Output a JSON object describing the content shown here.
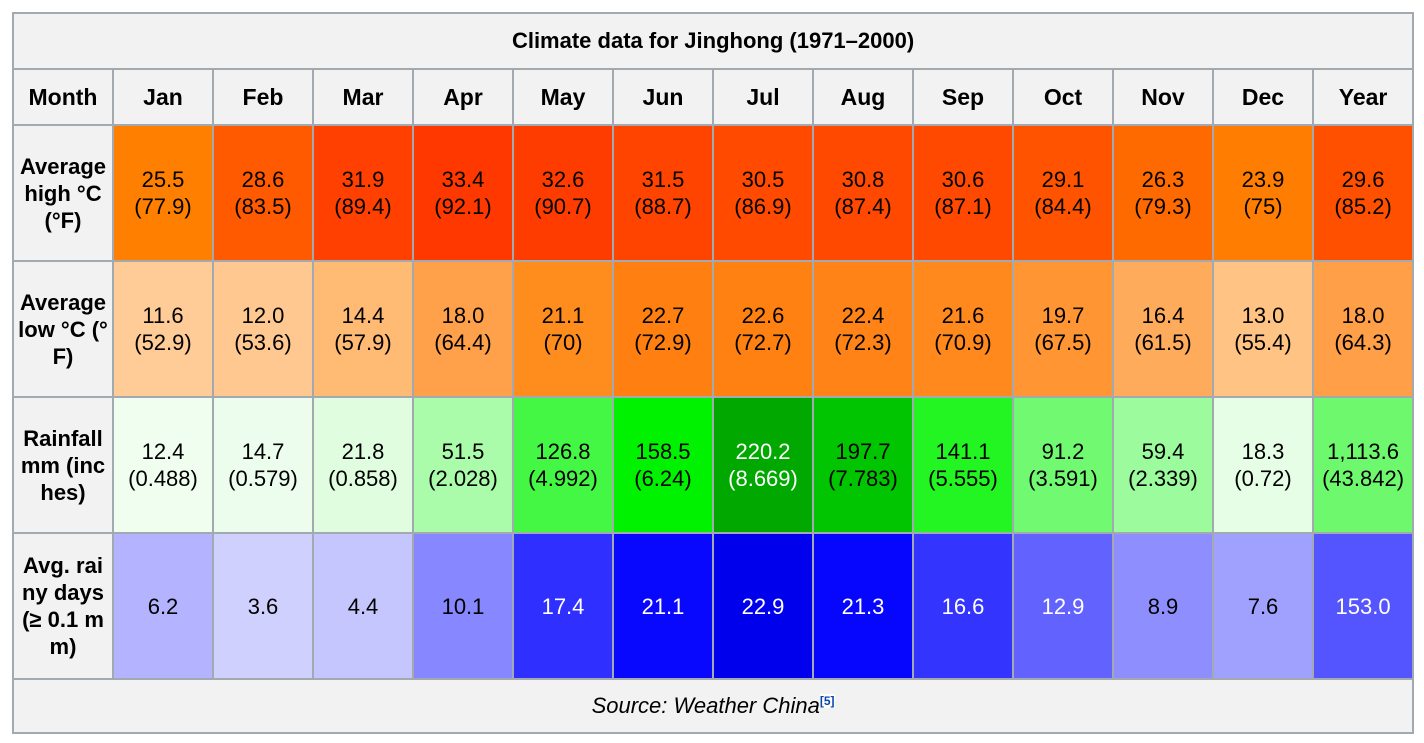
{
  "caption": "Climate data for Jinghong (1971–2000)",
  "header": {
    "month_label": "Month",
    "months": [
      "Jan",
      "Feb",
      "Mar",
      "Apr",
      "May",
      "Jun",
      "Jul",
      "Aug",
      "Sep",
      "Oct",
      "Nov",
      "Dec",
      "Year"
    ]
  },
  "rows": [
    {
      "label": "Average high °C (°F)",
      "cells": [
        {
          "v": "25.5",
          "s": "(77.9)",
          "bg": "#ff7f00",
          "fg": "#000000"
        },
        {
          "v": "28.6",
          "s": "(83.5)",
          "bg": "#ff5a00",
          "fg": "#000000"
        },
        {
          "v": "31.9",
          "s": "(89.4)",
          "bg": "#ff4000",
          "fg": "#000000"
        },
        {
          "v": "33.4",
          "s": "(92.1)",
          "bg": "#ff3800",
          "fg": "#000000"
        },
        {
          "v": "32.6",
          "s": "(90.7)",
          "bg": "#ff3c00",
          "fg": "#000000"
        },
        {
          "v": "31.5",
          "s": "(88.7)",
          "bg": "#ff4400",
          "fg": "#000000"
        },
        {
          "v": "30.5",
          "s": "(86.9)",
          "bg": "#ff4a00",
          "fg": "#000000"
        },
        {
          "v": "30.8",
          "s": "(87.4)",
          "bg": "#ff4800",
          "fg": "#000000"
        },
        {
          "v": "30.6",
          "s": "(87.1)",
          "bg": "#ff4900",
          "fg": "#000000"
        },
        {
          "v": "29.1",
          "s": "(84.4)",
          "bg": "#ff5300",
          "fg": "#000000"
        },
        {
          "v": "26.3",
          "s": "(79.3)",
          "bg": "#ff6a00",
          "fg": "#000000"
        },
        {
          "v": "23.9",
          "s": "(75)",
          "bg": "#ff7d00",
          "fg": "#000000"
        },
        {
          "v": "29.6",
          "s": "(85.2)",
          "bg": "#ff5000",
          "fg": "#000000"
        }
      ]
    },
    {
      "label": "Average low °C (°F)",
      "cells": [
        {
          "v": "11.6",
          "s": "(52.9)",
          "bg": "#ffcb96",
          "fg": "#000000"
        },
        {
          "v": "12.0",
          "s": "(53.6)",
          "bg": "#ffc890",
          "fg": "#000000"
        },
        {
          "v": "14.4",
          "s": "(57.9)",
          "bg": "#ffba74",
          "fg": "#000000"
        },
        {
          "v": "18.0",
          "s": "(64.4)",
          "bg": "#ffa04a",
          "fg": "#000000"
        },
        {
          "v": "21.1",
          "s": "(70)",
          "bg": "#ff8d1e",
          "fg": "#000000"
        },
        {
          "v": "22.7",
          "s": "(72.9)",
          "bg": "#ff8010",
          "fg": "#000000"
        },
        {
          "v": "22.6",
          "s": "(72.7)",
          "bg": "#ff8112",
          "fg": "#000000"
        },
        {
          "v": "22.4",
          "s": "(72.3)",
          "bg": "#ff8316",
          "fg": "#000000"
        },
        {
          "v": "21.6",
          "s": "(70.9)",
          "bg": "#ff891c",
          "fg": "#000000"
        },
        {
          "v": "19.7",
          "s": "(67.5)",
          "bg": "#ff9533",
          "fg": "#000000"
        },
        {
          "v": "16.4",
          "s": "(61.5)",
          "bg": "#ffab5c",
          "fg": "#000000"
        },
        {
          "v": "13.0",
          "s": "(55.4)",
          "bg": "#ffc383",
          "fg": "#000000"
        },
        {
          "v": "18.0",
          "s": "(64.3)",
          "bg": "#ff9f47",
          "fg": "#000000"
        }
      ]
    },
    {
      "label": "Rainfall mm (inches)",
      "cells": [
        {
          "v": "12.4",
          "s": "(0.488)",
          "bg": "#effeef",
          "fg": "#000000"
        },
        {
          "v": "14.7",
          "s": "(0.579)",
          "bg": "#edfded",
          "fg": "#000000"
        },
        {
          "v": "21.8",
          "s": "(0.858)",
          "bg": "#e0fde0",
          "fg": "#000000"
        },
        {
          "v": "51.5",
          "s": "(2.028)",
          "bg": "#aafbaa",
          "fg": "#000000"
        },
        {
          "v": "126.8",
          "s": "(4.992)",
          "bg": "#44f744",
          "fg": "#000000"
        },
        {
          "v": "158.5",
          "s": "(6.24)",
          "bg": "#00f200",
          "fg": "#000000"
        },
        {
          "v": "220.2",
          "s": "(8.669)",
          "bg": "#00a800",
          "fg": "#ffffff"
        },
        {
          "v": "197.7",
          "s": "(7.783)",
          "bg": "#00c500",
          "fg": "#000000"
        },
        {
          "v": "141.1",
          "s": "(5.555)",
          "bg": "#22f522",
          "fg": "#000000"
        },
        {
          "v": "91.2",
          "s": "(3.591)",
          "bg": "#72f972",
          "fg": "#000000"
        },
        {
          "v": "59.4",
          "s": "(2.339)",
          "bg": "#9cfb9c",
          "fg": "#000000"
        },
        {
          "v": "18.3",
          "s": "(0.72)",
          "bg": "#e6fde6",
          "fg": "#000000"
        },
        {
          "v": "1,113.6",
          "s": "(43.842)",
          "bg": "#6ef86e",
          "fg": "#000000"
        }
      ]
    },
    {
      "label": "Avg. rainy days (≥ 0.1 mm)",
      "cells": [
        {
          "v": "6.2",
          "s": "",
          "bg": "#b3b3ff",
          "fg": "#000000"
        },
        {
          "v": "3.6",
          "s": "",
          "bg": "#d0d0ff",
          "fg": "#000000"
        },
        {
          "v": "4.4",
          "s": "",
          "bg": "#c6c6ff",
          "fg": "#000000"
        },
        {
          "v": "10.1",
          "s": "",
          "bg": "#8787ff",
          "fg": "#000000"
        },
        {
          "v": "17.4",
          "s": "",
          "bg": "#2f2fff",
          "fg": "#ffffff"
        },
        {
          "v": "21.1",
          "s": "",
          "bg": "#0808ff",
          "fg": "#ffffff"
        },
        {
          "v": "22.9",
          "s": "",
          "bg": "#0000ed",
          "fg": "#ffffff"
        },
        {
          "v": "21.3",
          "s": "",
          "bg": "#0606ff",
          "fg": "#ffffff"
        },
        {
          "v": "16.6",
          "s": "",
          "bg": "#3434ff",
          "fg": "#ffffff"
        },
        {
          "v": "12.9",
          "s": "",
          "bg": "#6262ff",
          "fg": "#ffffff"
        },
        {
          "v": "8.9",
          "s": "",
          "bg": "#8e8eff",
          "fg": "#000000"
        },
        {
          "v": "7.6",
          "s": "",
          "bg": "#a0a0ff",
          "fg": "#000000"
        },
        {
          "v": "153.0",
          "s": "",
          "bg": "#5555ff",
          "fg": "#ffffff"
        }
      ]
    }
  ],
  "source": {
    "text": "Source: Weather China",
    "ref": "[5]"
  }
}
